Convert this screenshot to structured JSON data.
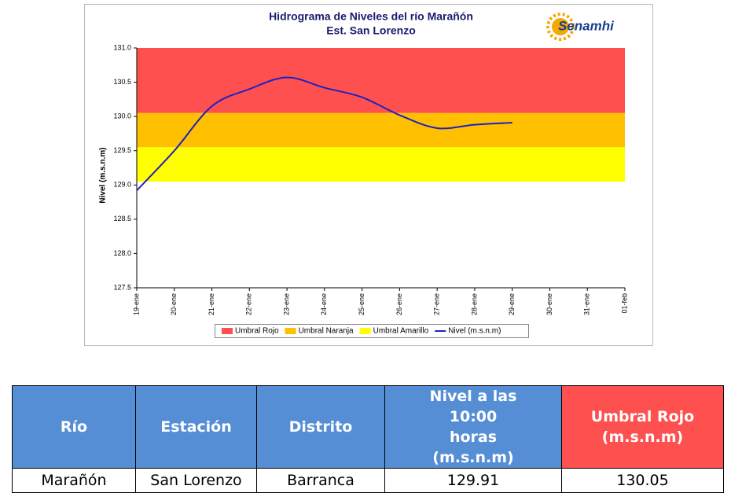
{
  "chart_data": {
    "type": "line",
    "title": "Hidrograma de Niveles del río Marañón",
    "subtitle": "Est. San Lorenzo",
    "y_label": "Nivel (m.s.n.m)",
    "logo": "Senamhi",
    "categories": [
      "19-ene",
      "20-ene",
      "21-ene",
      "22-ene",
      "23-ene",
      "24-ene",
      "25-ene",
      "26-ene",
      "27-ene",
      "28-ene",
      "29-ene",
      "30-ene",
      "31-ene",
      "01-feb"
    ],
    "series": [
      {
        "name": "Nivel (m.s.n.m)",
        "color": "#2020c0",
        "values": [
          128.92,
          129.5,
          130.15,
          130.4,
          130.57,
          130.42,
          130.28,
          130.02,
          129.83,
          129.88,
          129.91,
          null,
          null,
          null
        ]
      }
    ],
    "bands": [
      {
        "name": "Umbral Rojo",
        "color": "#ff5050",
        "value": 130.05
      },
      {
        "name": "Umbral Naranja",
        "color": "#ffc000",
        "value": 129.55
      },
      {
        "name": "Umbral Amarillo",
        "color": "#ffff00",
        "value": 129.05
      }
    ],
    "ylim": [
      127.5,
      131.0
    ],
    "yticks": [
      127.5,
      {
        "value": 128,
        "label": "128.0"
      },
      128.5,
      {
        "value": 129,
        "label": "129.0"
      },
      129.5,
      {
        "value": 130,
        "label": "130.0"
      },
      130.5,
      {
        "value": 131,
        "label": "131.0"
      }
    ]
  },
  "table": {
    "headers": [
      "Río",
      "Estación",
      "Distrito",
      "Nivel a las 10:00 horas (m.s.n.m)",
      "Umbral Rojo (m.s.n.m)"
    ],
    "rows": [
      [
        "Marañón",
        "San Lorenzo",
        "Barranca",
        "129.91",
        "130.05"
      ]
    ]
  }
}
